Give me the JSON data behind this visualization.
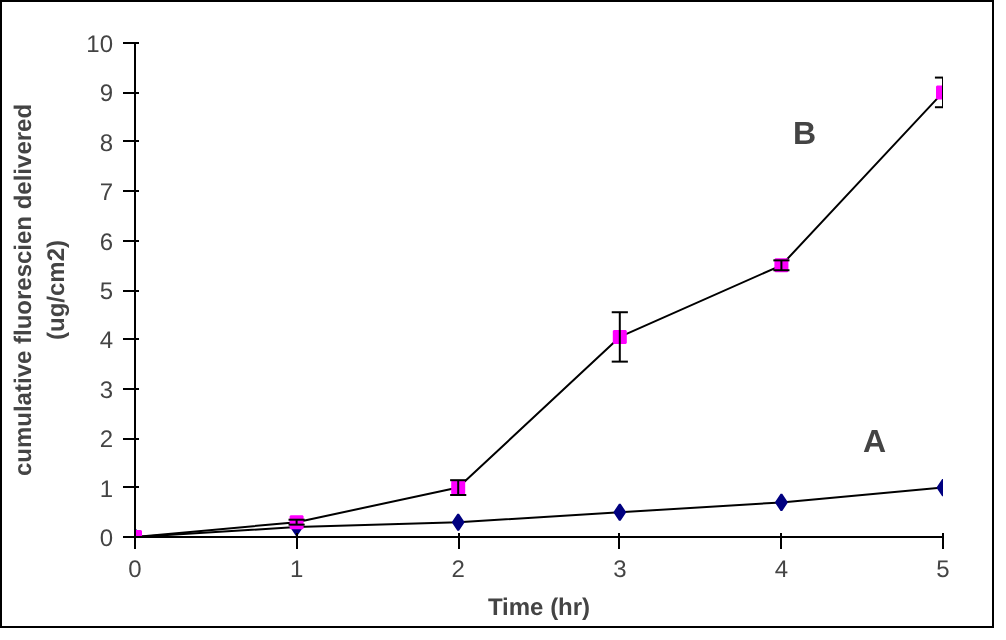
{
  "chart_data": {
    "type": "line",
    "xlabel": "Time (hr)",
    "ylabel": "cumulative fluorescien delivered\n(ug/cm2)",
    "x": [
      0,
      1,
      2,
      3,
      4,
      5
    ],
    "xlim": [
      0,
      5
    ],
    "xticks": [
      0,
      1,
      2,
      3,
      4,
      5
    ],
    "ylim": [
      0,
      10
    ],
    "yticks": [
      0,
      1,
      2,
      3,
      4,
      5,
      6,
      7,
      8,
      9,
      10
    ],
    "grid": false,
    "series": [
      {
        "name": "A",
        "color": "#000080",
        "marker": "diamond",
        "values": [
          0,
          0.2,
          0.3,
          0.5,
          0.7,
          1.0
        ]
      },
      {
        "name": "B",
        "color": "#ff00ff",
        "marker": "square",
        "values": [
          0,
          0.3,
          1.0,
          4.05,
          5.5,
          9.0
        ],
        "errors": [
          null,
          0.05,
          0.15,
          0.5,
          0.1,
          0.3
        ]
      }
    ]
  }
}
